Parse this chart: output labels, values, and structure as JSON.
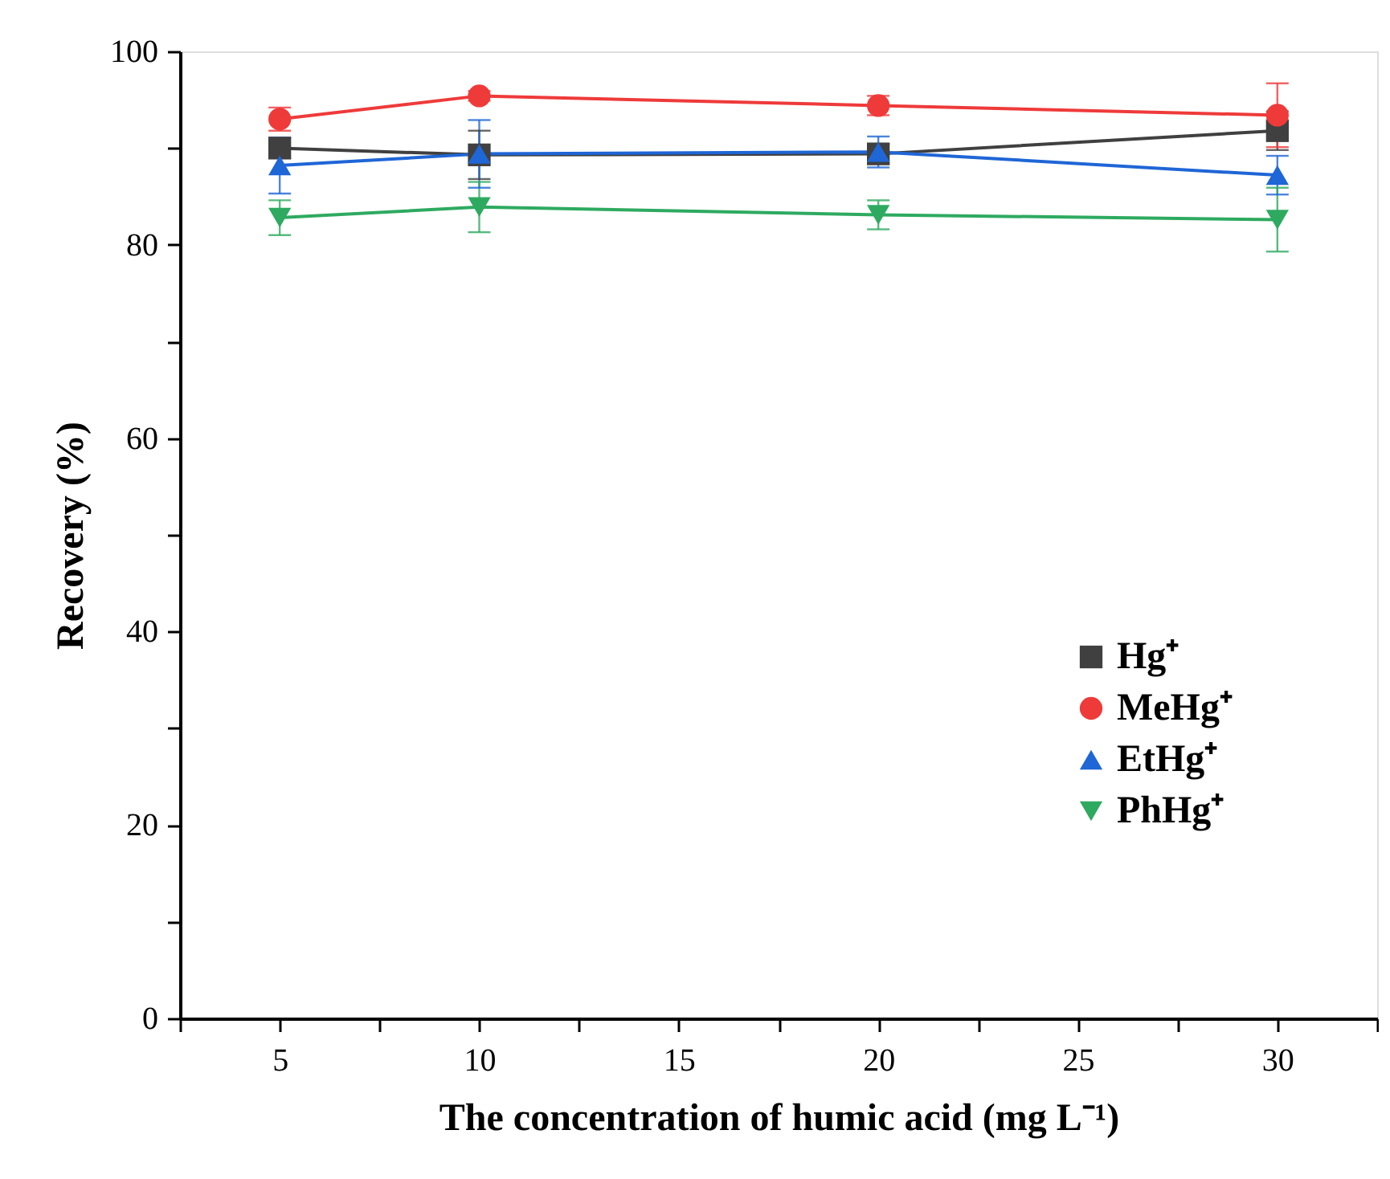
{
  "chart_data": {
    "type": "line",
    "xlabel": "The concentration of humic acid (mg L⁻¹)",
    "ylabel": "Recovery (%)",
    "x": [
      5,
      10,
      20,
      30
    ],
    "xlim": [
      2.5,
      32.5
    ],
    "xticks": [
      {
        "value": 2.5,
        "label": null
      },
      5,
      {
        "value": 7.5,
        "label": null
      },
      10,
      {
        "value": 12.5,
        "label": null
      },
      15,
      {
        "value": 17.5,
        "label": null
      },
      20,
      {
        "value": 22.5,
        "label": null
      },
      25,
      {
        "value": 27.5,
        "label": null
      },
      30,
      {
        "value": 32.5,
        "label": null
      }
    ],
    "ylim": [
      0,
      100
    ],
    "yticks": [
      0,
      {
        "value": 10,
        "label": null
      },
      20,
      {
        "value": 30,
        "label": null
      },
      40,
      {
        "value": 50,
        "label": null
      },
      60,
      {
        "value": 70,
        "label": null
      },
      80,
      {
        "value": 90,
        "label": null
      },
      100
    ],
    "grid": false,
    "legend": "bottom right",
    "series": [
      {
        "name": "Hg⁺",
        "color": "#404040",
        "marker": "square",
        "values": [
          90.0,
          89.3,
          89.4,
          91.8
        ],
        "errors": [
          1.0,
          2.5,
          1.0,
          2.0
        ]
      },
      {
        "name": "MeHg⁺",
        "color": "#ef3a3a",
        "marker": "circle",
        "values": [
          93.0,
          95.4,
          94.4,
          93.4
        ],
        "errors": [
          1.2,
          0.5,
          1.0,
          3.3
        ]
      },
      {
        "name": "EtHg⁺",
        "color": "#1f66d6",
        "marker": "triangle",
        "values": [
          88.2,
          89.4,
          89.6,
          87.2
        ],
        "errors": [
          2.9,
          3.5,
          1.6,
          2.0
        ]
      },
      {
        "name": "PhHg⁺",
        "color": "#2eaa60",
        "marker": "triangle-down",
        "values": [
          82.8,
          83.9,
          83.1,
          82.6
        ],
        "errors": [
          1.8,
          2.6,
          1.5,
          3.3
        ]
      }
    ]
  }
}
